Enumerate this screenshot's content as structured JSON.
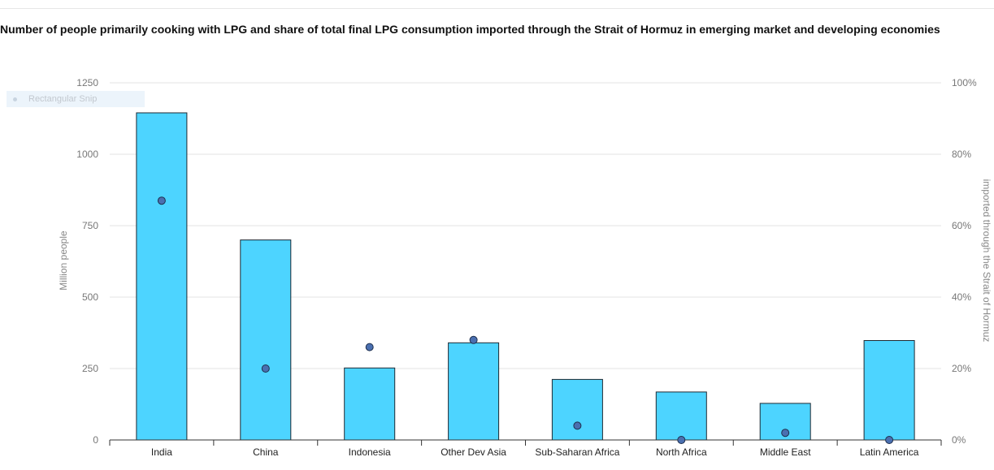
{
  "title": "Number of people primarily cooking with LPG and share of total final LPG consumption imported through the Strait of Hormuz in emerging market and developing economies",
  "overlay": {
    "label": "Rectangular Snip"
  },
  "chart_data": {
    "type": "bar",
    "categories": [
      "India",
      "China",
      "Indonesia",
      "Other Dev Asia",
      "Sub-Saharan Africa",
      "North Africa",
      "Middle East",
      "Latin America"
    ],
    "series": [
      {
        "axis": "left",
        "mark": "bar",
        "color": "#4dd4ff",
        "values": [
          1145,
          700,
          252,
          340,
          212,
          168,
          128,
          348
        ]
      },
      {
        "axis": "right",
        "mark": "point",
        "color": "#4a6fb0",
        "values": [
          67,
          20,
          26,
          28,
          4,
          0,
          2,
          0
        ]
      }
    ],
    "ylabel": "Million people",
    "y2label": "imported through the Strait of Hormuz",
    "ylim": [
      0,
      1250
    ],
    "y2lim": [
      0,
      100
    ],
    "yticks": [
      "0",
      "250",
      "500",
      "750",
      "1000",
      "1250"
    ],
    "y2ticks": [
      "0%",
      "20%",
      "40%",
      "60%",
      "80%",
      "100%"
    ],
    "grid": true
  }
}
